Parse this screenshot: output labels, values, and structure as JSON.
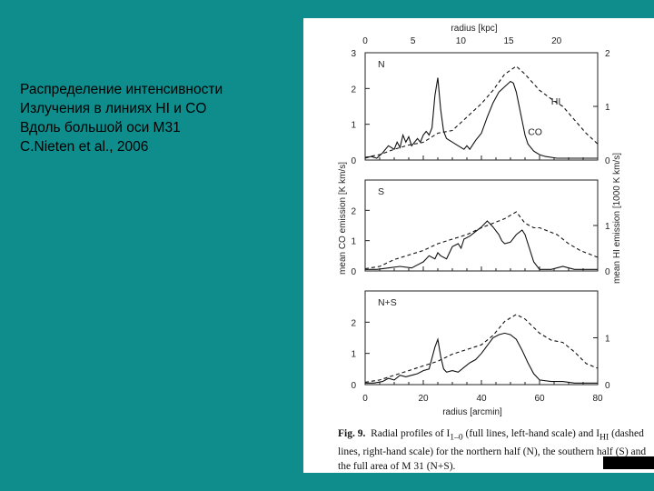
{
  "slide": {
    "text_lines": [
      "Распределение интенсивности",
      "Излучения в линиях HI и CO",
      "Вдоль большой оси M31",
      "C.Nieten et al., 2006"
    ],
    "background_color": "#0f8c8c"
  },
  "figure": {
    "caption": {
      "fig_label": "Fig. 9.",
      "text": "Radial profiles of I",
      "sub1": "1–0",
      "text2": " (full lines, left-hand scale) and I",
      "sub2": "HI",
      "text3": " (dashed lines, right-hand scale) for the northern half (N), the southern half (S) and the full area of M 31 (N+S)."
    }
  },
  "chart_data": {
    "type": "line",
    "xlabel": "radius [arcmin]",
    "x2label": "radius [kpc]",
    "ylabel": "mean CO emission [K km/s]",
    "y2label": "mean HI emission [1000 K km/s]",
    "xlim": [
      0,
      80
    ],
    "x_ticks": [
      0,
      20,
      40,
      60,
      80
    ],
    "x2_ticks": [
      0,
      5,
      10,
      15,
      20
    ],
    "panels": [
      {
        "name": "N",
        "ylim": [
          0,
          3
        ],
        "y_ticks": [
          0,
          1,
          2,
          3
        ],
        "y2lim": [
          0,
          2
        ],
        "y2_ticks": [
          0,
          1,
          2
        ],
        "labels": [
          {
            "text": "HI",
            "x": 64,
            "y": 1.55
          },
          {
            "text": "CO",
            "x": 56,
            "y": 0.7
          }
        ],
        "series": [
          {
            "name": "CO",
            "style": "solid",
            "axis": "left",
            "points": [
              [
                0,
                0.05
              ],
              [
                2,
                0.1
              ],
              [
                4,
                0.05
              ],
              [
                6,
                0.2
              ],
              [
                8,
                0.4
              ],
              [
                10,
                0.3
              ],
              [
                11,
                0.5
              ],
              [
                12,
                0.35
              ],
              [
                13,
                0.7
              ],
              [
                14,
                0.5
              ],
              [
                15,
                0.65
              ],
              [
                16,
                0.4
              ],
              [
                17,
                0.5
              ],
              [
                18,
                0.6
              ],
              [
                19,
                0.5
              ],
              [
                20,
                0.7
              ],
              [
                21,
                0.8
              ],
              [
                22,
                0.7
              ],
              [
                23,
                0.9
              ],
              [
                24,
                1.8
              ],
              [
                25,
                2.3
              ],
              [
                26,
                1.4
              ],
              [
                27,
                0.8
              ],
              [
                28,
                0.6
              ],
              [
                30,
                0.5
              ],
              [
                32,
                0.4
              ],
              [
                34,
                0.3
              ],
              [
                35,
                0.4
              ],
              [
                36,
                0.3
              ],
              [
                38,
                0.55
              ],
              [
                40,
                0.75
              ],
              [
                42,
                1.2
              ],
              [
                44,
                1.6
              ],
              [
                46,
                1.9
              ],
              [
                48,
                2.05
              ],
              [
                50,
                2.2
              ],
              [
                51,
                2.15
              ],
              [
                52,
                1.9
              ],
              [
                53,
                1.5
              ],
              [
                54,
                1.1
              ],
              [
                55,
                0.7
              ],
              [
                56,
                0.45
              ],
              [
                58,
                0.25
              ],
              [
                60,
                0.15
              ],
              [
                62,
                0.1
              ],
              [
                66,
                0.05
              ],
              [
                70,
                0.05
              ],
              [
                74,
                0.05
              ],
              [
                78,
                0.05
              ],
              [
                80,
                0.05
              ]
            ]
          },
          {
            "name": "HI",
            "style": "dashed",
            "axis": "right",
            "points": [
              [
                0,
                0.05
              ],
              [
                5,
                0.1
              ],
              [
                10,
                0.2
              ],
              [
                15,
                0.28
              ],
              [
                20,
                0.33
              ],
              [
                25,
                0.5
              ],
              [
                30,
                0.55
              ],
              [
                35,
                0.8
              ],
              [
                40,
                1.05
              ],
              [
                44,
                1.3
              ],
              [
                48,
                1.6
              ],
              [
                52,
                1.75
              ],
              [
                55,
                1.6
              ],
              [
                60,
                1.3
              ],
              [
                65,
                1.1
              ],
              [
                68,
                1.0
              ],
              [
                72,
                0.75
              ],
              [
                76,
                0.5
              ],
              [
                80,
                0.3
              ]
            ]
          }
        ]
      },
      {
        "name": "S",
        "ylim": [
          0,
          3
        ],
        "y_ticks": [
          0,
          1,
          2
        ],
        "y2lim": [
          0,
          2
        ],
        "y2_ticks": [
          0,
          1
        ],
        "labels": [],
        "series": [
          {
            "name": "CO",
            "style": "solid",
            "axis": "left",
            "points": [
              [
                0,
                0.05
              ],
              [
                4,
                0.05
              ],
              [
                8,
                0.1
              ],
              [
                12,
                0.15
              ],
              [
                16,
                0.1
              ],
              [
                18,
                0.2
              ],
              [
                20,
                0.3
              ],
              [
                22,
                0.5
              ],
              [
                24,
                0.4
              ],
              [
                25,
                0.6
              ],
              [
                26,
                0.5
              ],
              [
                28,
                0.4
              ],
              [
                30,
                0.8
              ],
              [
                32,
                0.9
              ],
              [
                33,
                0.75
              ],
              [
                34,
                1.05
              ],
              [
                36,
                1.15
              ],
              [
                38,
                1.3
              ],
              [
                40,
                1.45
              ],
              [
                42,
                1.65
              ],
              [
                43,
                1.55
              ],
              [
                44,
                1.45
              ],
              [
                46,
                1.2
              ],
              [
                47,
                1.0
              ],
              [
                48,
                0.9
              ],
              [
                50,
                0.95
              ],
              [
                52,
                1.2
              ],
              [
                54,
                1.35
              ],
              [
                55,
                1.2
              ],
              [
                56,
                0.9
              ],
              [
                58,
                0.3
              ],
              [
                60,
                0.05
              ],
              [
                64,
                0.05
              ],
              [
                68,
                0.15
              ],
              [
                72,
                0.05
              ],
              [
                76,
                0.05
              ],
              [
                80,
                0.05
              ]
            ]
          },
          {
            "name": "HI",
            "style": "dashed",
            "axis": "right",
            "points": [
              [
                0,
                0.05
              ],
              [
                5,
                0.1
              ],
              [
                10,
                0.25
              ],
              [
                15,
                0.35
              ],
              [
                20,
                0.45
              ],
              [
                25,
                0.6
              ],
              [
                30,
                0.7
              ],
              [
                35,
                0.8
              ],
              [
                40,
                0.95
              ],
              [
                44,
                1.05
              ],
              [
                48,
                1.15
              ],
              [
                52,
                1.3
              ],
              [
                55,
                1.05
              ],
              [
                58,
                0.95
              ],
              [
                60,
                0.95
              ],
              [
                64,
                0.85
              ],
              [
                66,
                0.8
              ],
              [
                70,
                0.6
              ],
              [
                74,
                0.45
              ],
              [
                78,
                0.35
              ],
              [
                80,
                0.3
              ]
            ]
          }
        ]
      },
      {
        "name": "N+S",
        "ylim": [
          0,
          3
        ],
        "y_ticks": [
          0,
          1,
          2
        ],
        "y2lim": [
          0,
          2
        ],
        "y2_ticks": [
          0,
          1
        ],
        "labels": [],
        "series": [
          {
            "name": "CO",
            "style": "solid",
            "axis": "left",
            "points": [
              [
                0,
                0.05
              ],
              [
                3,
                0.05
              ],
              [
                6,
                0.1
              ],
              [
                8,
                0.2
              ],
              [
                10,
                0.15
              ],
              [
                12,
                0.3
              ],
              [
                14,
                0.25
              ],
              [
                16,
                0.3
              ],
              [
                18,
                0.35
              ],
              [
                20,
                0.45
              ],
              [
                22,
                0.5
              ],
              [
                24,
                1.2
              ],
              [
                25,
                1.45
              ],
              [
                26,
                0.9
              ],
              [
                27,
                0.5
              ],
              [
                28,
                0.4
              ],
              [
                30,
                0.45
              ],
              [
                32,
                0.4
              ],
              [
                34,
                0.55
              ],
              [
                36,
                0.7
              ],
              [
                38,
                0.8
              ],
              [
                40,
                1.0
              ],
              [
                42,
                1.25
              ],
              [
                44,
                1.5
              ],
              [
                46,
                1.6
              ],
              [
                48,
                1.65
              ],
              [
                50,
                1.6
              ],
              [
                52,
                1.45
              ],
              [
                54,
                1.1
              ],
              [
                56,
                0.7
              ],
              [
                58,
                0.35
              ],
              [
                60,
                0.15
              ],
              [
                64,
                0.1
              ],
              [
                68,
                0.1
              ],
              [
                72,
                0.05
              ],
              [
                76,
                0.05
              ],
              [
                80,
                0.05
              ]
            ]
          },
          {
            "name": "HI",
            "style": "dashed",
            "axis": "right",
            "points": [
              [
                0,
                0.05
              ],
              [
                5,
                0.1
              ],
              [
                10,
                0.2
              ],
              [
                15,
                0.3
              ],
              [
                20,
                0.4
              ],
              [
                25,
                0.5
              ],
              [
                30,
                0.65
              ],
              [
                35,
                0.75
              ],
              [
                40,
                0.85
              ],
              [
                44,
                1.05
              ],
              [
                48,
                1.35
              ],
              [
                52,
                1.5
              ],
              [
                55,
                1.4
              ],
              [
                60,
                1.1
              ],
              [
                64,
                0.95
              ],
              [
                68,
                0.9
              ],
              [
                72,
                0.7
              ],
              [
                76,
                0.45
              ],
              [
                80,
                0.35
              ]
            ]
          }
        ]
      }
    ]
  }
}
